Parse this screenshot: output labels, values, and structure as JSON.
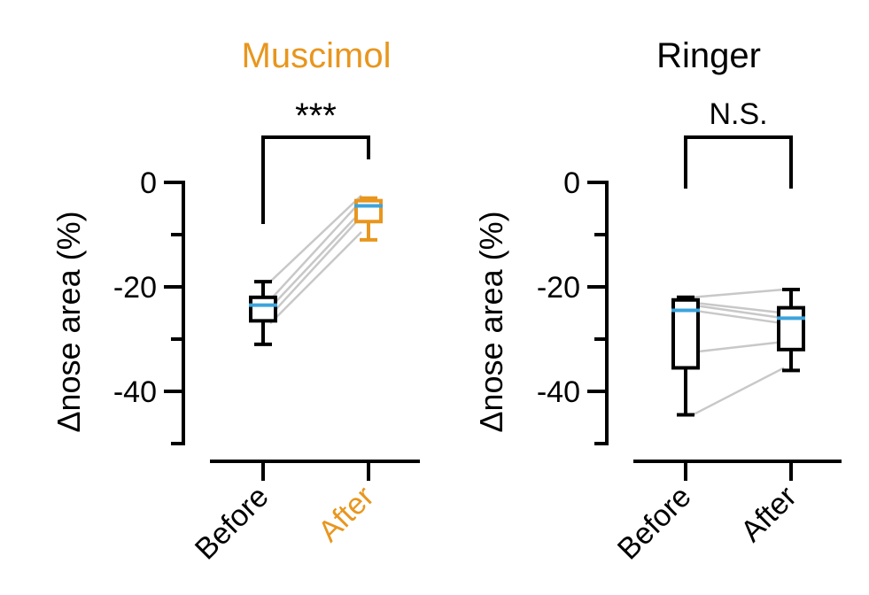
{
  "colors": {
    "muscimol": "#E8961E",
    "black": "#000000",
    "median": "#3BA3DC",
    "pair_line": "#C8C8C8"
  },
  "chart_data": [
    {
      "type": "box",
      "title": "Muscimol",
      "title_color": "#E8961E",
      "ylabel": "Δnose area (%)",
      "ylim": [
        -50,
        0
      ],
      "yticks": [
        0,
        -20,
        -40
      ],
      "ytick_labels": [
        "0",
        "-20",
        "-40"
      ],
      "minor_yticks": [
        -10,
        -30,
        -50
      ],
      "categories": [
        "Before",
        "After"
      ],
      "category_colors": [
        "#000000",
        "#E8961E"
      ],
      "significance": "***",
      "boxes": [
        {
          "name": "Before",
          "whisker_low": -31,
          "q1": -26.5,
          "median": -23.5,
          "q3": -22,
          "whisker_high": -19,
          "color": "#000000"
        },
        {
          "name": "After",
          "whisker_low": -11,
          "q1": -7.5,
          "median": -4.5,
          "q3": -3.5,
          "whisker_high": -3,
          "color": "#E8961E"
        }
      ],
      "paired_lines": [
        {
          "before": -19,
          "after": -2.5
        },
        {
          "before": -22.5,
          "after": -3.5
        },
        {
          "before": -24,
          "after": -5.5
        },
        {
          "before": -25.5,
          "after": -6.5
        },
        {
          "before": -27,
          "after": -9.5
        }
      ]
    },
    {
      "type": "box",
      "title": "Ringer",
      "title_color": "#000000",
      "ylabel": "Δnose area (%)",
      "ylim": [
        -50,
        0
      ],
      "yticks": [
        0,
        -20,
        -40
      ],
      "ytick_labels": [
        "0",
        "-20",
        "-40"
      ],
      "minor_yticks": [
        -10,
        -30,
        -50
      ],
      "categories": [
        "Before",
        "After"
      ],
      "category_colors": [
        "#000000",
        "#000000"
      ],
      "significance": "N.S.",
      "boxes": [
        {
          "name": "Before",
          "whisker_low": -44.5,
          "q1": -35.5,
          "median": -24.5,
          "q3": -22.5,
          "whisker_high": -22,
          "color": "#000000"
        },
        {
          "name": "After",
          "whisker_low": -36,
          "q1": -32,
          "median": -26,
          "q3": -24,
          "whisker_high": -20.5,
          "color": "#000000"
        }
      ],
      "paired_lines": [
        {
          "before": -22,
          "after": -20.5
        },
        {
          "before": -23,
          "after": -25
        },
        {
          "before": -23.5,
          "after": -26
        },
        {
          "before": -24.5,
          "after": -27
        },
        {
          "before": -32.5,
          "after": -30.5
        },
        {
          "before": -44.5,
          "after": -35.5
        }
      ]
    }
  ]
}
